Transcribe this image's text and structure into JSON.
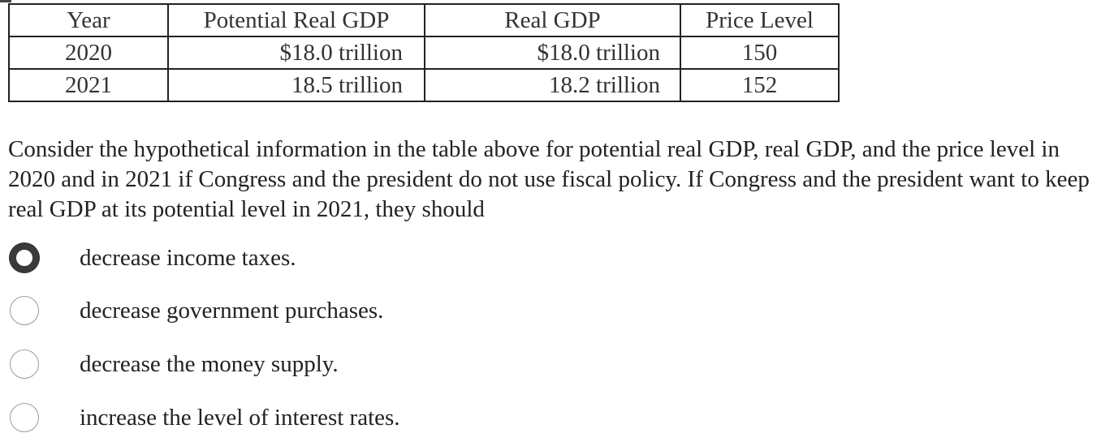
{
  "table": {
    "headers": [
      "Year",
      "Potential Real GDP",
      "Real GDP",
      "Price Level"
    ],
    "rows": [
      [
        "2020",
        "$18.0 trillion",
        "$18.0 trillion",
        "150"
      ],
      [
        "2021",
        "18.5 trillion",
        "18.2 trillion",
        "152"
      ]
    ]
  },
  "question": {
    "text": "Consider the hypothetical information in the table above for potential real GDP, real GDP, and the price level in 2020 and in 2021 if Congress and the president do not use fiscal policy. If Congress and the president want to keep real GDP at its potential level in 2021, they should"
  },
  "options": [
    {
      "label": "decrease income taxes.",
      "selected": true
    },
    {
      "label": "decrease government purchases.",
      "selected": false
    },
    {
      "label": "decrease the money supply.",
      "selected": false
    },
    {
      "label": "increase the level of interest rates.",
      "selected": false
    }
  ]
}
